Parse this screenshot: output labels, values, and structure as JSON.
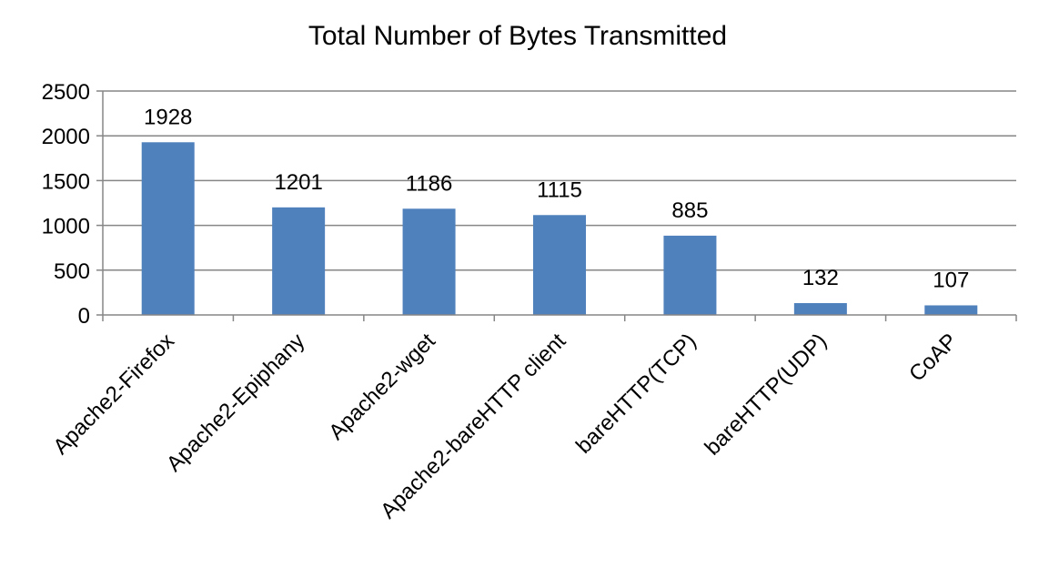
{
  "chart_data": {
    "type": "bar",
    "title": "Total Number of Bytes Transmitted",
    "xlabel": "",
    "ylabel": "",
    "categories": [
      "Apache2-Firefox",
      "Apache2-Epiphany",
      "Apache2-wget",
      "Apache2-bareHTTP client",
      "bareHTTP(TCP)",
      "bareHTTP(UDP)",
      "CoAP"
    ],
    "values": [
      1928,
      1201,
      1186,
      1115,
      885,
      132,
      107
    ],
    "data_labels": [
      "1928",
      "1201",
      "1186",
      "1115",
      "885",
      "132",
      "107"
    ],
    "ylim": [
      0,
      2500
    ],
    "yticks": [
      0,
      500,
      1000,
      1500,
      2000,
      2500
    ],
    "grid": "horizontal",
    "legend": "none",
    "colors": {
      "bar": "#4f81bd",
      "grid": "#868686",
      "axis": "#868686"
    }
  }
}
